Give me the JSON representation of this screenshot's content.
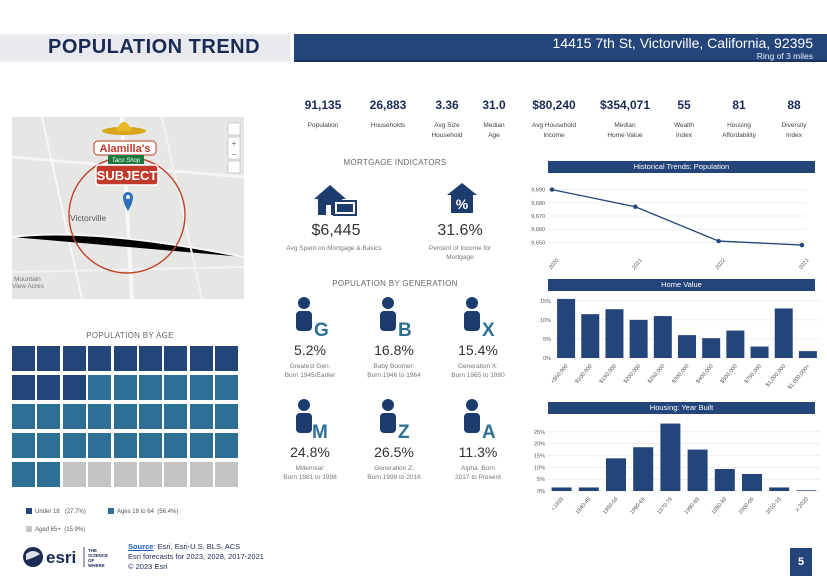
{
  "header": {
    "title": "POPULATION TREND",
    "address": "14415 7th St, Victorville, California, 92395",
    "ring": "Ring of 3 miles"
  },
  "stats": [
    {
      "value": "91,135",
      "label": "Population"
    },
    {
      "value": "26,883",
      "label": "Households"
    },
    {
      "value": "3.36",
      "label": "Avg Size Household"
    },
    {
      "value": "31.0",
      "label": "Median Age"
    },
    {
      "value": "$80,240",
      "label": "Avg Household Income"
    },
    {
      "value": "$354,071",
      "label": "Median Home Value"
    },
    {
      "value": "55",
      "label": "Wealth Index"
    },
    {
      "value": "81",
      "label": "Housing Affordability"
    },
    {
      "value": "88",
      "label": "Diversity Index"
    }
  ],
  "map": {
    "logo_name": "Alamilla's",
    "logo_sub": "Taco Shop",
    "subject_label": "SUBJECT",
    "city_label": "Victorville",
    "other_label_1": "Mountain",
    "other_label_2": "View Acres",
    "map_controls": [
      "+",
      "−"
    ]
  },
  "mortgage": {
    "heading": "MORTGAGE INDICATORS",
    "spent_value": "$6,445",
    "spent_label": "Avg Spent on Mortgage & Basics",
    "percent_value": "31.6%",
    "percent_label": "Percent of Income for Mortgage"
  },
  "generation": {
    "heading": "POPULATION BY GENERATION",
    "items": [
      {
        "letter": "G",
        "pct": "5.2%",
        "label1": "Greatest Gen:",
        "label2": "Born 1945/Earlier"
      },
      {
        "letter": "B",
        "pct": "16.8%",
        "label1": "Baby Boomer:",
        "label2": "Born 1946 to 1964"
      },
      {
        "letter": "X",
        "pct": "15.4%",
        "label1": "Generation X:",
        "label2": "Born 1965 to 1980"
      },
      {
        "letter": "M",
        "pct": "24.8%",
        "label1": "Millennial:",
        "label2": "Born 1981 to 1998"
      },
      {
        "letter": "Z",
        "pct": "26.5%",
        "label1": "Generation Z:",
        "label2": "Born 1999 to 2016"
      },
      {
        "letter": "A",
        "pct": "11.3%",
        "label1": "Alpha: Born",
        "label2": "2017 to Present"
      }
    ]
  },
  "age": {
    "heading": "POPULATION BY AGE",
    "legend": [
      {
        "label": "Under 18",
        "pct": "(27.7%)",
        "color": "#24457a"
      },
      {
        "label": "Ages 18 to 64",
        "pct": "(56.4%)",
        "color": "#2e6f95"
      },
      {
        "label": "Aged 65+",
        "pct": "(15.9%)",
        "color": "#c4c4c4"
      }
    ]
  },
  "charts": {
    "population_title": "Historical Trends: Population",
    "home_value_title": "Home Value",
    "year_built_title": "Housing: Year Built"
  },
  "chart_data": [
    {
      "type": "line",
      "title": "Historical Trends: Population",
      "x": [
        "2020",
        "2021",
        "2022",
        "2023"
      ],
      "values": [
        9690,
        9677,
        9651,
        9648
      ],
      "ylim": [
        9645,
        9695
      ],
      "yticks": [
        "9,650",
        "9,660",
        "9,670",
        "9,680",
        "9,690"
      ],
      "grid": true
    },
    {
      "type": "bar",
      "title": "Home Value",
      "categories": [
        "<$50,000",
        "$100,000",
        "$150,000",
        "$200,000",
        "$250,000",
        "$300,000",
        "$400,000",
        "$500,000",
        "$750,000",
        "$1,000,000",
        "$1,000,000+"
      ],
      "values": [
        15.5,
        11.5,
        12.8,
        10.0,
        11.0,
        6.0,
        5.2,
        7.2,
        3.0,
        13.0,
        1.8
      ],
      "ylim": [
        0,
        16
      ],
      "yticks": [
        "0%",
        "5%",
        "10%",
        "15%"
      ],
      "grid": true
    },
    {
      "type": "bar",
      "title": "Housing: Year Built",
      "categories": [
        "<1939",
        "1940-49",
        "1950-59",
        "1960-69",
        "1970-79",
        "1980-89",
        "1990-99",
        "2000-09",
        "2010-19",
        "≥ 2020"
      ],
      "values": [
        1.5,
        1.5,
        13.8,
        18.5,
        28.5,
        17.5,
        9.3,
        7.2,
        1.5,
        0.3
      ],
      "ylim": [
        0,
        30
      ],
      "yticks": [
        "0%",
        "5%",
        "10%",
        "15%",
        "20%",
        "25%"
      ],
      "grid": true
    }
  ],
  "footer": {
    "source_label": "Source",
    "source_text": ": Esri, Esri-U.S. BLS, ACS",
    "forecast": "Esri forecasts for 2023, 2028, 2017-2021",
    "copyright": "© 2023 Esri",
    "brand": "esri",
    "tagline_1": "THE",
    "tagline_2": "SCIENCE",
    "tagline_3": "OF",
    "tagline_4": "WHERE",
    "page": "5"
  }
}
